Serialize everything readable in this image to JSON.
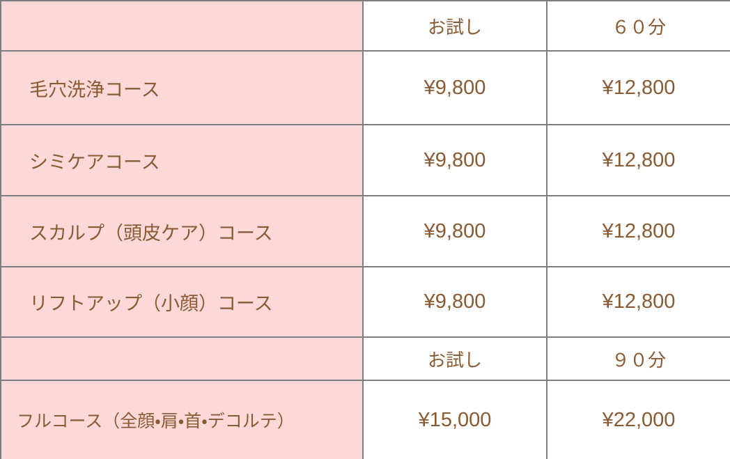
{
  "pricing": {
    "colors": {
      "label_background": "#fcd9d9",
      "price_background": "#ffffff",
      "text": "#8a5a32",
      "border": "#7f7f7f"
    },
    "sections": [
      {
        "header": {
          "name": "",
          "trial": "お試し",
          "duration": "６０分"
        },
        "rows": [
          {
            "name": "毛穴洗浄コース",
            "trial": "¥9,800",
            "duration": "¥12,800"
          },
          {
            "name": "シミケアコース",
            "trial": "¥9,800",
            "duration": "¥12,800"
          },
          {
            "name": "スカルプ（頭皮ケア）コース",
            "trial": "¥9,800",
            "duration": "¥12,800"
          },
          {
            "name": "リフトアップ（小顔）コース",
            "trial": "¥9,800",
            "duration": "¥12,800"
          }
        ]
      },
      {
        "header": {
          "name": "",
          "trial": "お試し",
          "duration": "９０分"
        },
        "rows": [
          {
            "name": "フルコース（全顔・肩・首・デコルテ）",
            "trial": "¥15,000",
            "duration": "¥22,000"
          }
        ]
      }
    ]
  }
}
